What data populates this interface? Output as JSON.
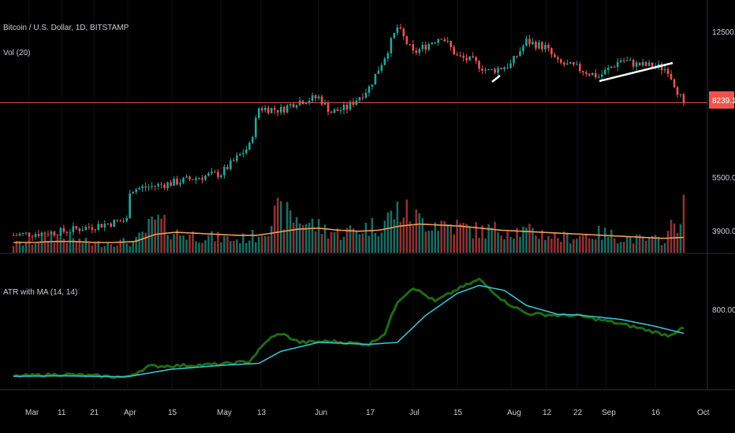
{
  "header": {
    "symbol_line": "Bitcoin / U.S. Dollar, 1D, BITSTAMP",
    "volume_line": "Vol (20)",
    "indicator_line": "ATR with MA (14, 14)"
  },
  "price_axis": {
    "ticks": [
      "12500.00",
      "5500.00",
      "3900.00"
    ],
    "last_price_label": "8239.19"
  },
  "atr_axis": {
    "ticks": [
      "800.00"
    ]
  },
  "time_axis": {
    "labels": [
      "Mar",
      "11",
      "21",
      "Apr",
      "15",
      "May",
      "13",
      "Jun",
      "17",
      "Jul",
      "15",
      "Aug",
      "12",
      "22",
      "Sep",
      "16",
      "Oct"
    ]
  },
  "colors": {
    "background": "#000000",
    "up_candle": "#26a69a",
    "down_candle": "#ef5350",
    "volume_up": "#1c6b62",
    "volume_down": "#8f3232",
    "volume_ma": "#f39c5a",
    "atr": "#1f6b12",
    "atr_ma": "#39c0cf",
    "last_price_line": "#d9534f",
    "trendline": "#ffffff"
  },
  "chart_data": [
    {
      "type": "candlestick",
      "title": "Bitcoin / U.S. Dollar, 1D, BITSTAMP",
      "scale": "log",
      "y_ticks": [
        12500,
        5500,
        3900
      ],
      "last_price": 8239.19,
      "x_labels": [
        "Mar",
        "11",
        "21",
        "Apr",
        "15",
        "May",
        "13",
        "Jun",
        "17",
        "Jul",
        "15",
        "Aug",
        "12",
        "22",
        "Sep",
        "16",
        "Oct"
      ],
      "approx_close_path": [
        [
          "Feb 24",
          3800
        ],
        [
          "Mar 1",
          3830
        ],
        [
          "Mar 11",
          3870
        ],
        [
          "Mar 21",
          4000
        ],
        [
          "Apr 1",
          4150
        ],
        [
          "Apr 2",
          4950
        ],
        [
          "Apr 15",
          5150
        ],
        [
          "Apr 25",
          5350
        ],
        [
          "May 1",
          5450
        ],
        [
          "May 10",
          6400
        ],
        [
          "May 13",
          8000
        ],
        [
          "May 20",
          7900
        ],
        [
          "May 25",
          8300
        ],
        [
          "Jun 1",
          8500
        ],
        [
          "Jun 5",
          7800
        ],
        [
          "Jun 10",
          8000
        ],
        [
          "Jun 17",
          9000
        ],
        [
          "Jun 22",
          10800
        ],
        [
          "Jun 26",
          12800
        ],
        [
          "Jul 1",
          11000
        ],
        [
          "Jul 5",
          11500
        ],
        [
          "Jul 10",
          12200
        ],
        [
          "Jul 15",
          10800
        ],
        [
          "Jul 20",
          10500
        ],
        [
          "Jul 25",
          9900
        ],
        [
          "Aug 1",
          10300
        ],
        [
          "Aug 6",
          11800
        ],
        [
          "Aug 12",
          11400
        ],
        [
          "Aug 16",
          10400
        ],
        [
          "Aug 22",
          10100
        ],
        [
          "Aug 29",
          9600
        ],
        [
          "Sep 5",
          10600
        ],
        [
          "Sep 10",
          10300
        ],
        [
          "Sep 16",
          10200
        ],
        [
          "Sep 20",
          10000
        ],
        [
          "Sep 24",
          8500
        ],
        [
          "Sep 25",
          8239.19
        ]
      ]
    },
    {
      "type": "bar",
      "title": "Vol (20)",
      "series": [
        {
          "name": "Vol (20)",
          "approx_relative_values": [
            0.4,
            0.5,
            0.8,
            0.6,
            0.4,
            0.5,
            0.5,
            1.5,
            0.9,
            0.8,
            0.7,
            0.6,
            0.8,
            1.8,
            1.6,
            1.2,
            0.9,
            1.1,
            1.3,
            2.0,
            1.5,
            1.4,
            1.2,
            1.0,
            1.1,
            1.0,
            0.9,
            0.7,
            0.8,
            0.9,
            0.7,
            0.6,
            0.6,
            2.0
          ]
        },
        {
          "name": "MA",
          "approx_relative_values": [
            0.5,
            0.5,
            0.55,
            0.55,
            0.5,
            0.5,
            0.55,
            0.9,
            1.0,
            0.95,
            0.9,
            0.85,
            0.85,
            1.0,
            1.15,
            1.2,
            1.1,
            1.05,
            1.1,
            1.3,
            1.4,
            1.35,
            1.3,
            1.2,
            1.1,
            1.05,
            1.0,
            0.95,
            0.9,
            0.85,
            0.8,
            0.75,
            0.7,
            0.75
          ]
        }
      ]
    },
    {
      "type": "line",
      "title": "ATR with MA (14, 14)",
      "y_ticks": [
        800
      ],
      "series": [
        {
          "name": "ATR",
          "values": [
            [
              "Feb 24",
              130
            ],
            [
              "Mar 11",
              150
            ],
            [
              "Apr 1",
              120
            ],
            [
              "Apr 8",
              230
            ],
            [
              "Apr 15",
              235
            ],
            [
              "May 1",
              250
            ],
            [
              "May 10",
              280
            ],
            [
              "May 16",
              500
            ],
            [
              "May 20",
              560
            ],
            [
              "May 26",
              470
            ],
            [
              "Jun 5",
              480
            ],
            [
              "Jun 17",
              450
            ],
            [
              "Jun 22",
              560
            ],
            [
              "Jun 26",
              880
            ],
            [
              "Jul 1",
              1020
            ],
            [
              "Jul 8",
              880
            ],
            [
              "Jul 15",
              1000
            ],
            [
              "Jul 22",
              1100
            ],
            [
              "Jul 30",
              880
            ],
            [
              "Aug 6",
              760
            ],
            [
              "Aug 16",
              740
            ],
            [
              "Aug 22",
              740
            ],
            [
              "Sep 1",
              680
            ],
            [
              "Sep 10",
              620
            ],
            [
              "Sep 20",
              540
            ],
            [
              "Sep 25",
              610
            ]
          ]
        },
        {
          "name": "MA",
          "values": [
            [
              "Feb 24",
              130
            ],
            [
              "Mar 11",
              135
            ],
            [
              "Apr 1",
              125
            ],
            [
              "Apr 15",
              200
            ],
            [
              "May 1",
              240
            ],
            [
              "May 13",
              260
            ],
            [
              "May 20",
              380
            ],
            [
              "Jun 1",
              470
            ],
            [
              "Jun 17",
              450
            ],
            [
              "Jun 26",
              470
            ],
            [
              "Jul 5",
              740
            ],
            [
              "Jul 15",
              960
            ],
            [
              "Jul 22",
              1040
            ],
            [
              "Jul 30",
              990
            ],
            [
              "Aug 6",
              840
            ],
            [
              "Aug 16",
              750
            ],
            [
              "Aug 22",
              745
            ],
            [
              "Sep 5",
              700
            ],
            [
              "Sep 16",
              630
            ],
            [
              "Sep 25",
              560
            ]
          ]
        }
      ]
    }
  ]
}
